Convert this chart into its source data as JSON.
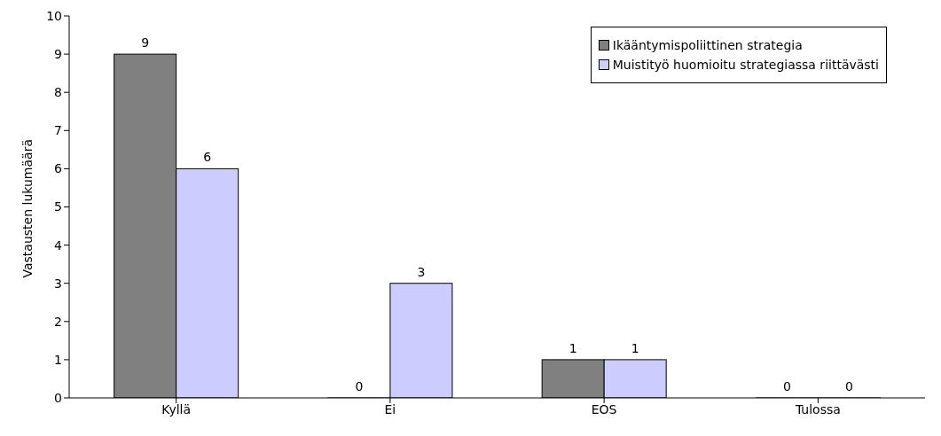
{
  "chart_data": {
    "type": "bar",
    "ylabel": "Vastausten lukumäärä",
    "categories": [
      "Kyllä",
      "Ei",
      "EOS",
      "Tulossa"
    ],
    "series": [
      {
        "name": "Ikääntymispoliittinen strategia",
        "color": "#808080",
        "values": [
          9,
          0,
          1,
          0
        ]
      },
      {
        "name": "Muistityö huomioitu strategiassa riittävästi",
        "color": "#ccccff",
        "values": [
          6,
          3,
          1,
          0
        ]
      }
    ],
    "ylim": [
      0,
      10
    ],
    "yticks": [
      0,
      1,
      2,
      3,
      4,
      5,
      6,
      7,
      8,
      9,
      10
    ],
    "grid": false,
    "legend": "top right",
    "data_labels": true
  }
}
